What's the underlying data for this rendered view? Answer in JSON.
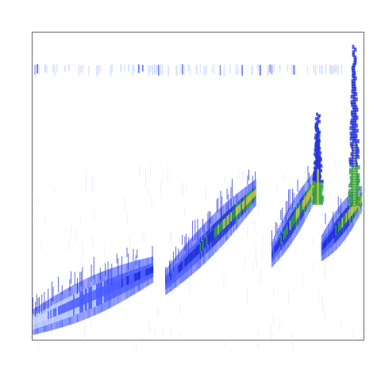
{
  "chart_data": {
    "type": "heatmap",
    "title": "",
    "xlabel": "",
    "ylabel": "",
    "grid": false,
    "legend": "none",
    "colorscale": [
      "#ffffff",
      "#c7d7ff",
      "#4a5dff",
      "#1c2bd6",
      "#2f9e44",
      "#b8d23c",
      "#f2b33d",
      "#e06a3b"
    ],
    "features": [
      {
        "name": "top-dashes",
        "kind": "horizontal-streak",
        "x": [
          0.0,
          1.0
        ],
        "y": 0.88,
        "intensity": 0.25
      },
      {
        "name": "diagonal-band-1",
        "kind": "diagonal-band",
        "x": [
          0.0,
          0.36
        ],
        "y": [
          0.06,
          0.23
        ],
        "intensity": 0.35
      },
      {
        "name": "diagonal-band-2",
        "kind": "diagonal-band",
        "x": [
          0.4,
          0.67
        ],
        "y": [
          0.19,
          0.48
        ],
        "intensity": 0.75
      },
      {
        "name": "diagonal-band-3",
        "kind": "diagonal-band",
        "x": [
          0.72,
          0.86
        ],
        "y": [
          0.28,
          0.52
        ],
        "intensity": 0.9
      },
      {
        "name": "diagonal-band-4",
        "kind": "diagonal-band",
        "x": [
          0.87,
          0.99
        ],
        "y": [
          0.3,
          0.46
        ],
        "intensity": 0.85
      },
      {
        "name": "spike-1",
        "kind": "vertical-spike",
        "x": 0.86,
        "y": [
          0.45,
          0.74
        ],
        "intensity": 0.5
      },
      {
        "name": "spike-2",
        "kind": "vertical-spike",
        "x": 0.97,
        "y": [
          0.45,
          0.96
        ],
        "intensity": 0.55
      }
    ]
  }
}
